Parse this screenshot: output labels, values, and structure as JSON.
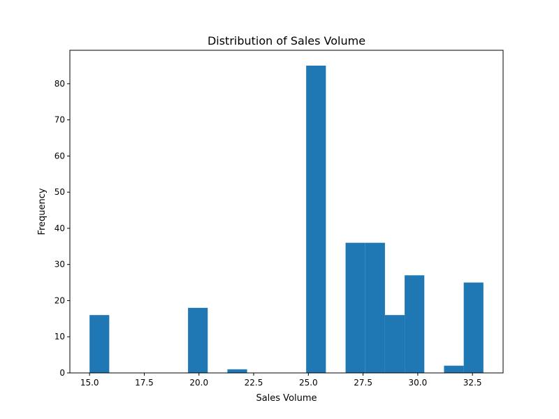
{
  "chart_data": {
    "type": "bar",
    "subtype": "histogram",
    "title": "Distribution of Sales Volume",
    "xlabel": "Sales Volume",
    "ylabel": "Frequency",
    "xlim": [
      14.1,
      33.9
    ],
    "ylim": [
      0,
      89.25
    ],
    "grid": false,
    "bar_color": "#1f77b4",
    "x_ticks": [
      "15.0",
      "17.5",
      "20.0",
      "22.5",
      "25.0",
      "27.5",
      "30.0",
      "32.5"
    ],
    "y_ticks": [
      "0",
      "10",
      "20",
      "30",
      "40",
      "50",
      "60",
      "70",
      "80"
    ],
    "bin_edges": [
      15.0,
      15.9,
      16.8,
      17.7,
      18.6,
      19.5,
      20.4,
      21.3,
      22.2,
      23.1,
      24.0,
      24.9,
      25.8,
      26.7,
      27.6,
      28.5,
      29.4,
      30.3,
      31.2,
      32.1,
      33.0
    ],
    "values": [
      16,
      0,
      0,
      0,
      0,
      18,
      0,
      1,
      0,
      0,
      0,
      85,
      0,
      36,
      36,
      16,
      27,
      0,
      2,
      25
    ]
  }
}
